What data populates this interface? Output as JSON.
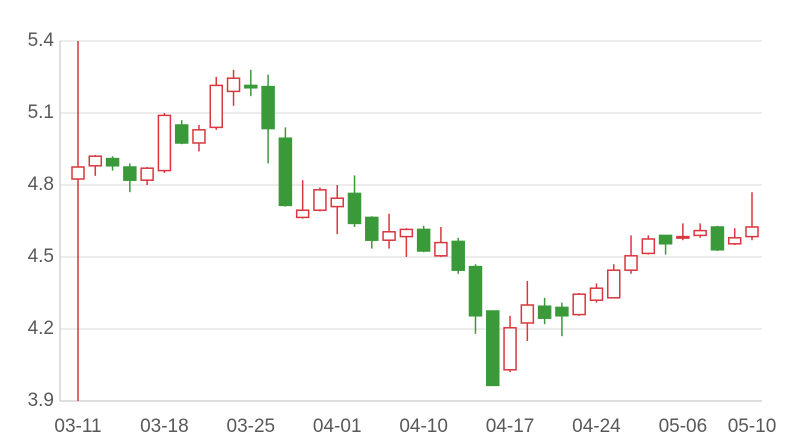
{
  "chart_data": {
    "type": "candlestick",
    "categories": [
      "03-11",
      null,
      null,
      null,
      null,
      "03-18",
      null,
      null,
      null,
      null,
      "03-25",
      null,
      null,
      null,
      null,
      "04-01",
      null,
      null,
      null,
      null,
      "04-10",
      null,
      null,
      null,
      null,
      "04-17",
      null,
      null,
      null,
      null,
      "04-24",
      null,
      null,
      null,
      null,
      "05-06",
      null,
      null,
      null,
      "05-10"
    ],
    "open": [
      4.825,
      4.88,
      4.91,
      4.875,
      4.82,
      4.86,
      5.05,
      4.975,
      5.04,
      5.19,
      5.215,
      5.21,
      4.995,
      4.665,
      4.695,
      4.71,
      4.765,
      4.665,
      4.57,
      4.585,
      4.615,
      4.505,
      4.565,
      4.46,
      4.275,
      4.03,
      4.225,
      4.295,
      4.29,
      4.26,
      4.32,
      4.33,
      4.445,
      4.515,
      4.59,
      4.58,
      4.59,
      4.625,
      4.555,
      4.585
    ],
    "high": [
      5.4,
      4.925,
      4.92,
      4.89,
      4.875,
      5.1,
      5.07,
      5.05,
      5.25,
      5.28,
      5.28,
      5.26,
      5.04,
      4.82,
      4.79,
      4.8,
      4.84,
      4.67,
      4.68,
      4.62,
      4.63,
      4.625,
      4.58,
      4.47,
      4.275,
      4.255,
      4.4,
      4.33,
      4.31,
      4.35,
      4.39,
      4.47,
      4.59,
      4.59,
      4.59,
      4.64,
      4.64,
      4.63,
      4.62,
      4.77
    ],
    "low": [
      3.9,
      4.838,
      4.86,
      4.77,
      4.8,
      4.85,
      4.97,
      4.94,
      5.03,
      5.13,
      5.17,
      4.89,
      4.71,
      4.66,
      4.69,
      4.595,
      4.625,
      4.535,
      4.535,
      4.5,
      4.52,
      4.5,
      4.43,
      4.18,
      3.965,
      4.02,
      4.15,
      4.22,
      4.17,
      4.255,
      4.31,
      4.33,
      4.43,
      4.51,
      4.51,
      4.57,
      4.58,
      4.525,
      4.55,
      4.57
    ],
    "close": [
      4.875,
      4.92,
      4.88,
      4.82,
      4.87,
      5.09,
      4.975,
      5.03,
      5.215,
      5.245,
      5.205,
      5.035,
      4.715,
      4.695,
      4.78,
      4.745,
      4.64,
      4.57,
      4.605,
      4.615,
      4.525,
      4.56,
      4.445,
      4.255,
      3.965,
      4.205,
      4.3,
      4.245,
      4.255,
      4.345,
      4.37,
      4.445,
      4.505,
      4.575,
      4.555,
      4.585,
      4.61,
      4.53,
      4.58,
      4.625
    ],
    "up_color": "#d9363e",
    "down_color": "#3a9a3a",
    "ylim": [
      3.9,
      5.4
    ],
    "yticks": [
      3.9,
      4.2,
      4.5,
      4.8,
      5.1,
      5.4
    ],
    "grid": true
  }
}
